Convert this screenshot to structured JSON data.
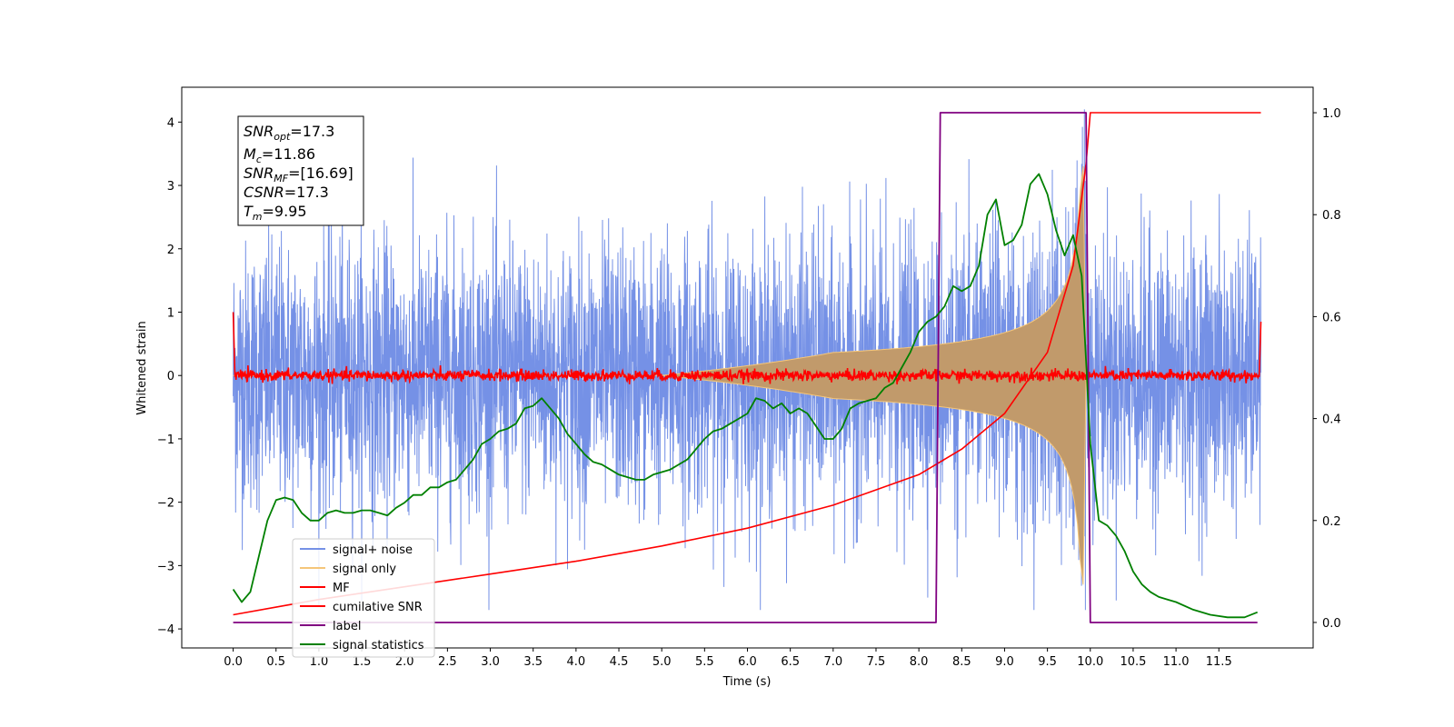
{
  "chart_data": {
    "type": "line",
    "title": "",
    "xlabel": "Time (s)",
    "ylabel": "Whitened strain",
    "xlim": [
      -0.6,
      12.6
    ],
    "ylim": [
      -4.3,
      4.55
    ],
    "y2lim": [
      -0.05,
      1.05
    ],
    "x_ticks": [
      "0.0",
      "0.5",
      "1.0",
      "1.5",
      "2.0",
      "2.5",
      "3.0",
      "3.5",
      "4.0",
      "4.5",
      "5.0",
      "5.5",
      "6.0",
      "6.5",
      "7.0",
      "7.5",
      "8.0",
      "8.5",
      "9.0",
      "9.5",
      "10.0",
      "10.5",
      "11.0",
      "11.5"
    ],
    "y_ticks": [
      "4",
      "3",
      "2",
      "1",
      "0",
      "−1",
      "−2",
      "−3",
      "−4"
    ],
    "y2_ticks": [
      "1.0",
      "0.8",
      "0.6",
      "0.4",
      "0.2",
      "0.0"
    ],
    "grid": false,
    "legend_position": "lower-left",
    "info_box": {
      "snr_opt": {
        "base": "SNR",
        "sub": "opt",
        "value": "=17.3"
      },
      "mc": {
        "base": "M",
        "sub": "c",
        "value": "=11.86"
      },
      "snr_mf": {
        "base": "SNR",
        "sub": "MF",
        "value": "=[16.69]"
      },
      "csnr": {
        "base": "CSNR",
        "sub": "",
        "value": "=17.3"
      },
      "tm": {
        "base": "T",
        "sub": "m",
        "value": "=9.95"
      }
    },
    "series": [
      {
        "name": "signal+ noise",
        "axis": "left",
        "color": "#7591e6",
        "noise_std": 1.0,
        "extreme_range": [
          -3.7,
          4.2
        ],
        "t_range": [
          0.0,
          11.99
        ]
      },
      {
        "name": "signal only",
        "axis": "left",
        "color": "#f5c679",
        "coalescence_time": 9.95,
        "peak_amplitude": 3.3,
        "t_range": [
          0.0,
          9.95
        ]
      },
      {
        "name": "MF",
        "axis": "left",
        "color": "#ff0000",
        "baseline": 0.0,
        "edge_values": [
          1.0,
          0.85
        ]
      },
      {
        "name": "cumilative SNR",
        "axis": "right",
        "color": "#ff0000",
        "x": [
          0.0,
          0.5,
          1.0,
          2.0,
          3.0,
          4.0,
          5.0,
          6.0,
          7.0,
          8.0,
          8.5,
          9.0,
          9.5,
          9.8,
          9.95,
          10.0,
          11.99
        ],
        "y": [
          0.015,
          0.03,
          0.045,
          0.07,
          0.095,
          0.12,
          0.15,
          0.185,
          0.23,
          0.29,
          0.34,
          0.41,
          0.53,
          0.7,
          0.9,
          1.0,
          1.0
        ]
      },
      {
        "name": "label",
        "axis": "right",
        "color": "#800080",
        "x": [
          0.0,
          8.2,
          8.25,
          9.95,
          10.0,
          11.95
        ],
        "y": [
          0.0,
          0.0,
          1.0,
          1.0,
          0.0,
          0.0
        ]
      },
      {
        "name": "signal statistics",
        "axis": "right",
        "color": "#008000",
        "x": [
          0.0,
          0.1,
          0.2,
          0.3,
          0.4,
          0.5,
          0.6,
          0.7,
          0.8,
          0.9,
          1.0,
          1.1,
          1.2,
          1.3,
          1.4,
          1.5,
          1.6,
          1.7,
          1.8,
          1.9,
          2.0,
          2.1,
          2.2,
          2.3,
          2.4,
          2.5,
          2.6,
          2.7,
          2.8,
          2.9,
          3.0,
          3.1,
          3.2,
          3.3,
          3.4,
          3.5,
          3.6,
          3.7,
          3.8,
          3.9,
          4.0,
          4.1,
          4.2,
          4.3,
          4.4,
          4.5,
          4.6,
          4.7,
          4.8,
          4.9,
          5.0,
          5.1,
          5.2,
          5.3,
          5.4,
          5.5,
          5.6,
          5.7,
          5.8,
          5.9,
          6.0,
          6.1,
          6.2,
          6.3,
          6.4,
          6.5,
          6.6,
          6.7,
          6.8,
          6.9,
          7.0,
          7.1,
          7.2,
          7.3,
          7.4,
          7.5,
          7.6,
          7.7,
          7.8,
          7.9,
          8.0,
          8.1,
          8.2,
          8.3,
          8.4,
          8.5,
          8.6,
          8.7,
          8.8,
          8.9,
          9.0,
          9.1,
          9.2,
          9.3,
          9.4,
          9.5,
          9.6,
          9.7,
          9.8,
          9.9,
          10.0,
          10.1,
          10.2,
          10.3,
          10.4,
          10.5,
          10.6,
          10.7,
          10.8,
          10.9,
          11.0,
          11.2,
          11.4,
          11.6,
          11.8,
          11.95
        ],
        "y": [
          0.065,
          0.04,
          0.06,
          0.13,
          0.2,
          0.24,
          0.245,
          0.24,
          0.215,
          0.2,
          0.2,
          0.215,
          0.22,
          0.215,
          0.215,
          0.22,
          0.22,
          0.215,
          0.21,
          0.225,
          0.235,
          0.25,
          0.25,
          0.265,
          0.265,
          0.275,
          0.28,
          0.3,
          0.32,
          0.35,
          0.36,
          0.375,
          0.38,
          0.39,
          0.42,
          0.425,
          0.44,
          0.42,
          0.4,
          0.37,
          0.35,
          0.33,
          0.315,
          0.31,
          0.3,
          0.29,
          0.285,
          0.28,
          0.28,
          0.29,
          0.295,
          0.3,
          0.31,
          0.32,
          0.34,
          0.36,
          0.375,
          0.38,
          0.39,
          0.4,
          0.41,
          0.44,
          0.435,
          0.42,
          0.43,
          0.41,
          0.42,
          0.41,
          0.385,
          0.36,
          0.36,
          0.38,
          0.42,
          0.43,
          0.435,
          0.44,
          0.46,
          0.47,
          0.5,
          0.53,
          0.57,
          0.59,
          0.6,
          0.62,
          0.66,
          0.65,
          0.66,
          0.7,
          0.8,
          0.83,
          0.74,
          0.75,
          0.78,
          0.86,
          0.88,
          0.84,
          0.77,
          0.72,
          0.76,
          0.68,
          0.35,
          0.2,
          0.19,
          0.17,
          0.14,
          0.1,
          0.075,
          0.06,
          0.05,
          0.045,
          0.04,
          0.025,
          0.015,
          0.01,
          0.01,
          0.02
        ]
      }
    ]
  }
}
